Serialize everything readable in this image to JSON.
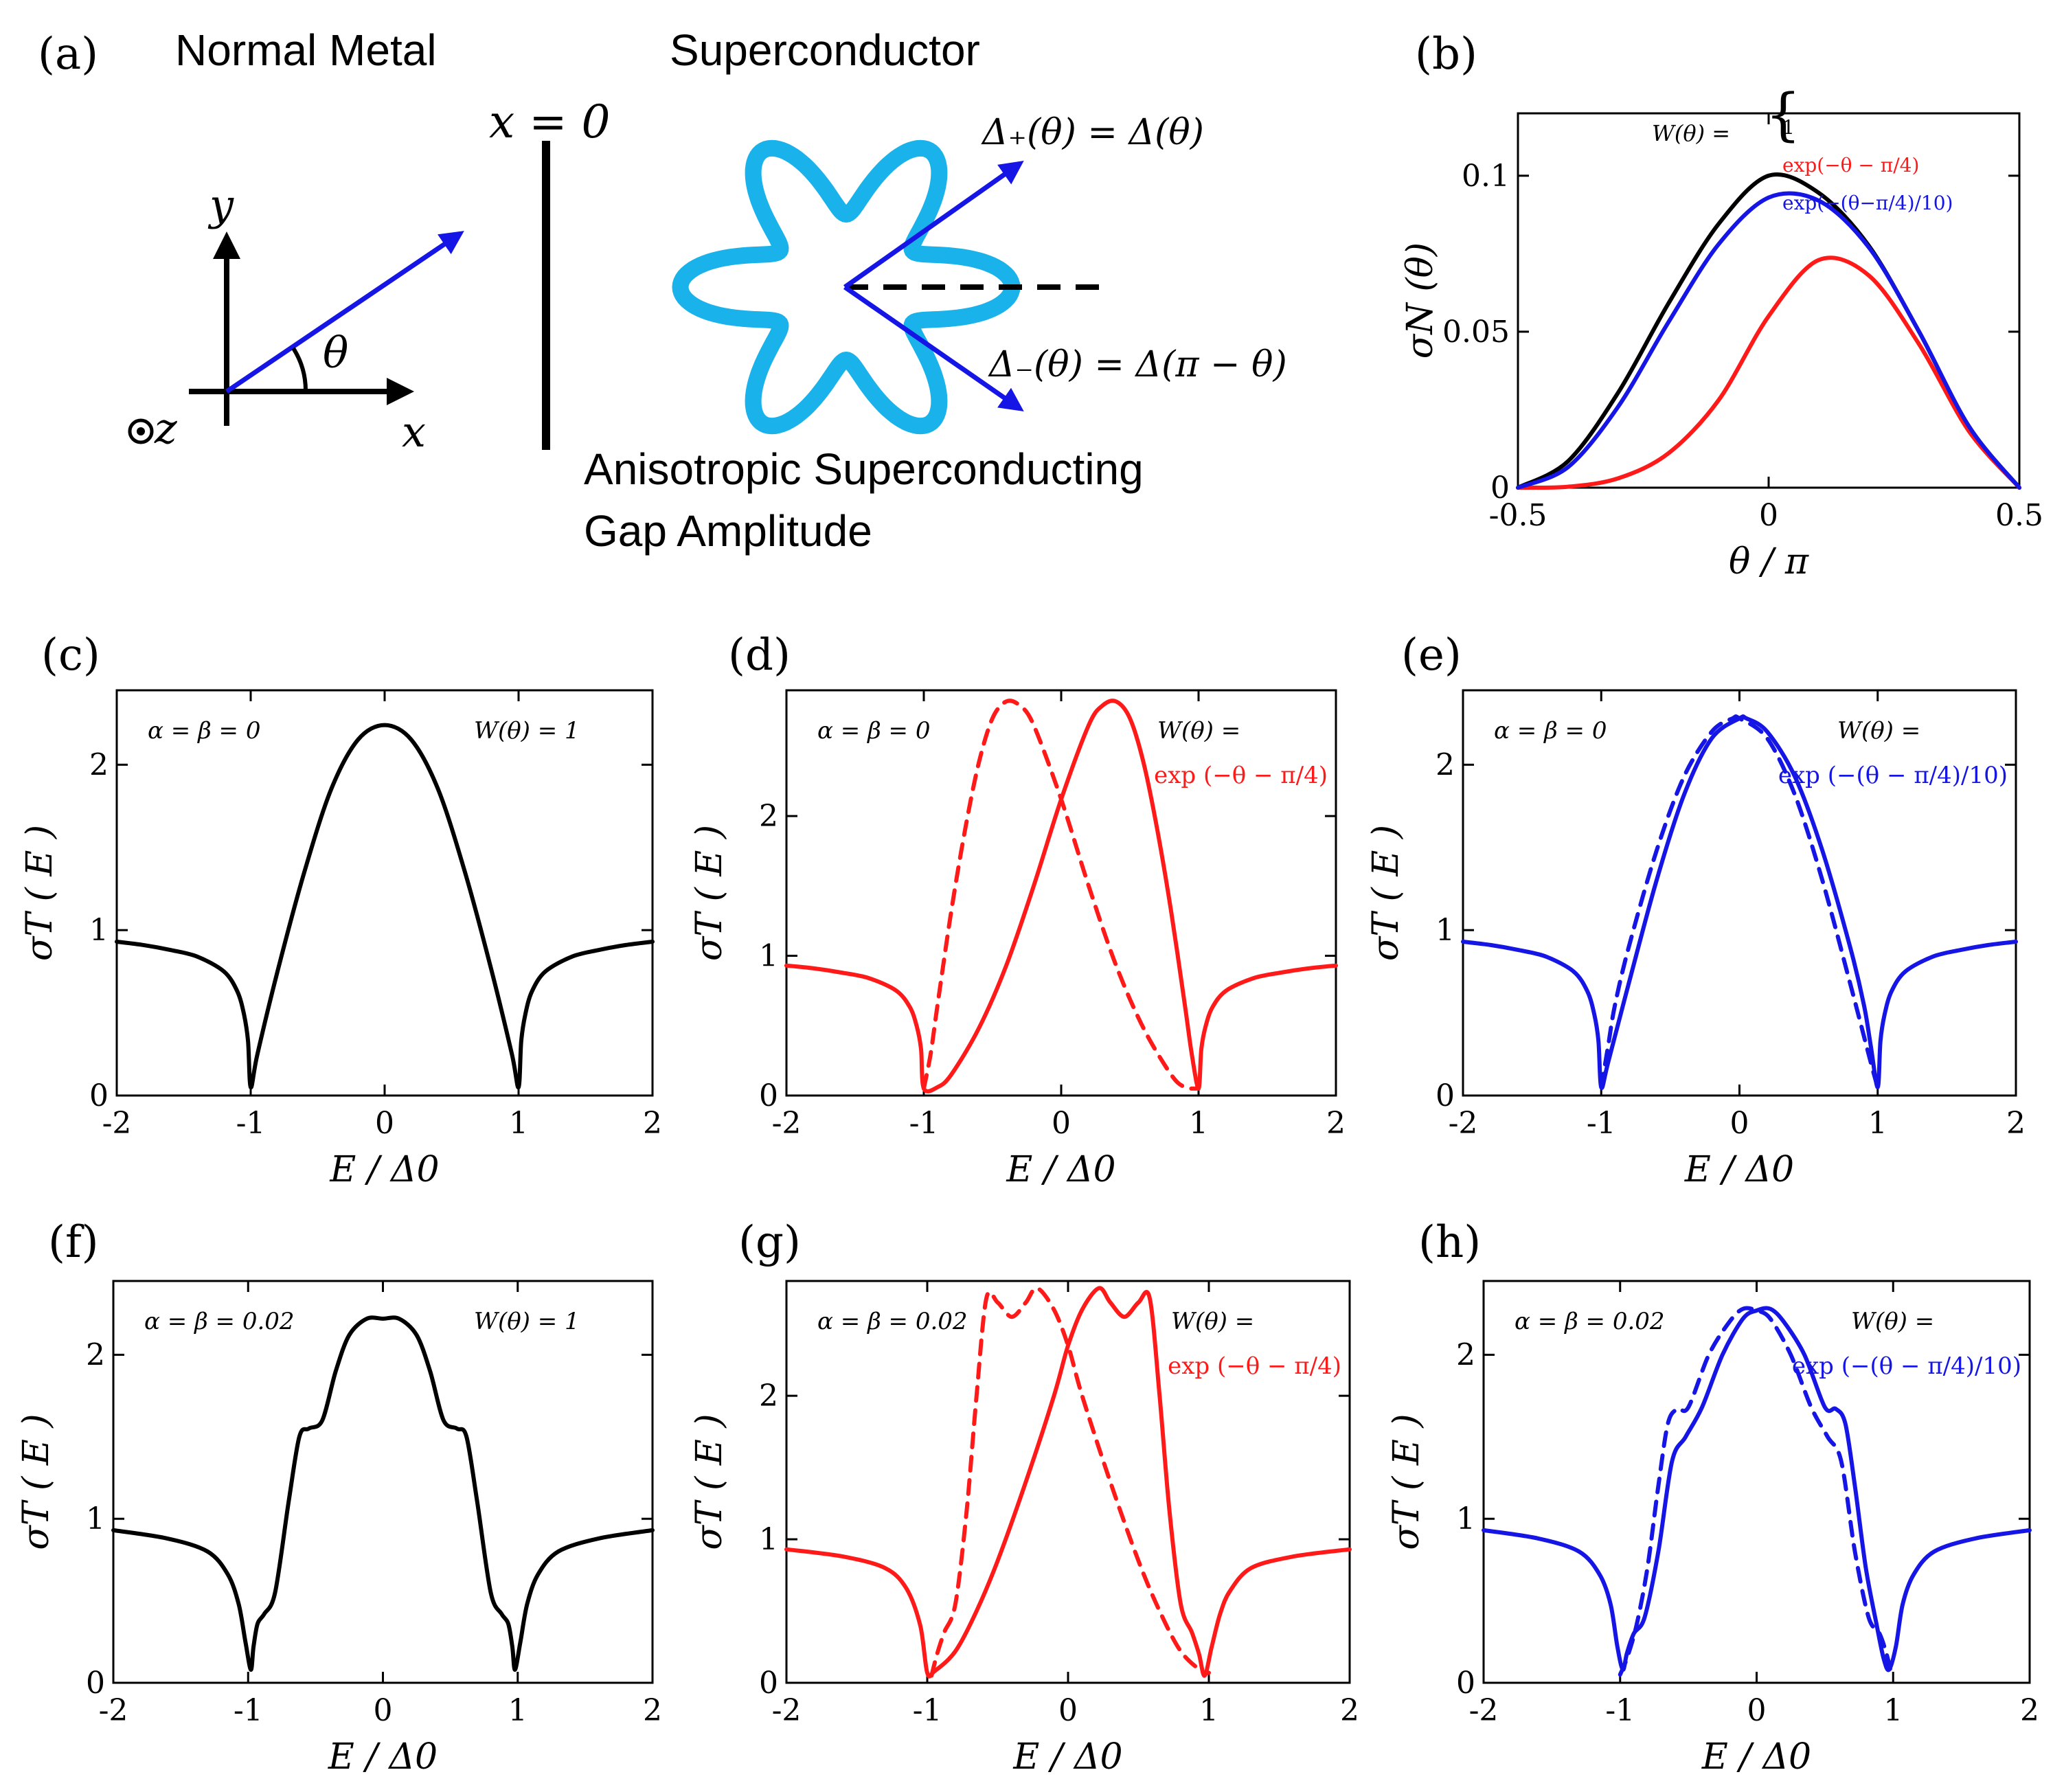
{
  "colors": {
    "black": "#000000",
    "red": "#ff1a1a",
    "blue": "#1515e6",
    "cyan": "#1ab2ea"
  },
  "panel_a": {
    "tag": "(a)",
    "normal_metal": "Normal Metal",
    "superconductor": "Superconductor",
    "x0": "x = 0",
    "axis_y": "y",
    "axis_x": "x",
    "axis_z": "z",
    "theta": "θ",
    "delta_plus": "Δ₊(θ) = Δ(θ)",
    "delta_minus": "Δ₋(θ) = Δ(π − θ)",
    "gap_line1": "Anisotropic Superconducting",
    "gap_line2": "Gap Amplitude"
  },
  "chart_data": [
    {
      "id": "b",
      "tag": "(b)",
      "type": "line",
      "xlabel": "θ / π",
      "ylabel": "σN (θ)",
      "xlim": [
        -0.5,
        0.5
      ],
      "ylim": [
        0,
        0.12
      ],
      "xticks": [
        "-0.5",
        "0",
        "0.5"
      ],
      "yticks": [
        "0",
        "0.05",
        "0.1"
      ],
      "legend_title": "W(θ) =",
      "series": [
        {
          "name": "1",
          "color": "black",
          "dashed": false,
          "x": [
            -0.5,
            -0.4,
            -0.3,
            -0.2,
            -0.1,
            0,
            0.1,
            0.2,
            0.3,
            0.4,
            0.5
          ],
          "y": [
            0,
            0.0085,
            0.0305,
            0.059,
            0.0845,
            0.1,
            0.0945,
            0.0775,
            0.05,
            0.0195,
            0
          ]
        },
        {
          "name": "exp(−θ − π/4)",
          "color": "red",
          "dashed": false,
          "x": [
            -0.5,
            -0.4,
            -0.3,
            -0.2,
            -0.1,
            0,
            0.1,
            0.2,
            0.3,
            0.4,
            0.5
          ],
          "y": [
            0,
            0.0003,
            0.003,
            0.011,
            0.028,
            0.055,
            0.073,
            0.068,
            0.046,
            0.018,
            0
          ]
        },
        {
          "name": "exp(−(θ−π/4)/10)",
          "color": "blue",
          "dashed": false,
          "x": [
            -0.5,
            -0.4,
            -0.3,
            -0.2,
            -0.1,
            0,
            0.1,
            0.2,
            0.3,
            0.4,
            0.5
          ],
          "y": [
            0,
            0.0066,
            0.026,
            0.053,
            0.078,
            0.093,
            0.092,
            0.077,
            0.05,
            0.0195,
            0
          ]
        }
      ]
    },
    {
      "id": "c",
      "tag": "(c)",
      "type": "line",
      "xlabel": "E / Δ0",
      "ylabel": "σT ( E )",
      "xlim": [
        -2,
        2
      ],
      "ylim": [
        0,
        2.45
      ],
      "xticks": [
        "-2",
        "-1",
        "0",
        "1",
        "2"
      ],
      "yticks": [
        "0",
        "1",
        "2"
      ],
      "param": "α = β = 0",
      "wtitle": "W(θ) = 1",
      "wexpr": "",
      "series": [
        {
          "name": "W(θ)=1",
          "color": "black",
          "dashed": false,
          "x": [
            -2,
            -1.8,
            -1.6,
            -1.4,
            -1.2,
            -1.1,
            -1.05,
            -1.02,
            -1,
            -0.95,
            -0.8,
            -0.6,
            -0.4,
            -0.2,
            0,
            0.2,
            0.4,
            0.6,
            0.8,
            0.95,
            1,
            1.02,
            1.05,
            1.1,
            1.2,
            1.4,
            1.6,
            1.8,
            2
          ],
          "y": [
            0.93,
            0.91,
            0.88,
            0.84,
            0.75,
            0.63,
            0.49,
            0.33,
            0.05,
            0.25,
            0.75,
            1.35,
            1.85,
            2.15,
            2.24,
            2.15,
            1.85,
            1.35,
            0.75,
            0.25,
            0.05,
            0.33,
            0.49,
            0.63,
            0.75,
            0.84,
            0.88,
            0.91,
            0.93
          ]
        }
      ]
    },
    {
      "id": "d",
      "tag": "(d)",
      "type": "line",
      "xlabel": "E / Δ0",
      "ylabel": "σT ( E )",
      "xlim": [
        -2,
        2
      ],
      "ylim": [
        0,
        2.9
      ],
      "xticks": [
        "-2",
        "-1",
        "0",
        "1",
        "2"
      ],
      "yticks": [
        "0",
        "1",
        "2"
      ],
      "param": "α = β = 0",
      "wtitle": "W(θ) =",
      "wexpr": "exp (−θ − π/4)",
      "series": [
        {
          "name": "solid",
          "color": "red",
          "dashed": false,
          "x": [
            -2,
            -1.8,
            -1.6,
            -1.4,
            -1.2,
            -1.1,
            -1.05,
            -1.02,
            -1,
            -0.9,
            -0.8,
            -0.6,
            -0.4,
            -0.2,
            0,
            0.2,
            0.3,
            0.4,
            0.5,
            0.6,
            0.7,
            0.8,
            0.9,
            0.95,
            1,
            1.02,
            1.05,
            1.1,
            1.2,
            1.4,
            1.6,
            1.8,
            2
          ],
          "y": [
            0.93,
            0.91,
            0.88,
            0.84,
            0.75,
            0.63,
            0.49,
            0.33,
            0.05,
            0.06,
            0.15,
            0.48,
            0.93,
            1.5,
            2.12,
            2.65,
            2.79,
            2.82,
            2.7,
            2.38,
            1.9,
            1.32,
            0.65,
            0.3,
            0.05,
            0.33,
            0.49,
            0.63,
            0.75,
            0.84,
            0.88,
            0.91,
            0.93
          ]
        },
        {
          "name": "dashed",
          "color": "red",
          "dashed": true,
          "x": [
            -1,
            -0.95,
            -0.9,
            -0.8,
            -0.7,
            -0.6,
            -0.5,
            -0.4,
            -0.3,
            -0.2,
            0,
            0.2,
            0.4,
            0.6,
            0.8,
            0.9,
            1
          ],
          "y": [
            0.05,
            0.3,
            0.65,
            1.32,
            1.9,
            2.38,
            2.7,
            2.82,
            2.79,
            2.65,
            2.12,
            1.5,
            0.93,
            0.48,
            0.15,
            0.06,
            0.05
          ]
        }
      ]
    },
    {
      "id": "e",
      "tag": "(e)",
      "type": "line",
      "xlabel": "E / Δ0",
      "ylabel": "σT ( E )",
      "xlim": [
        -2,
        2
      ],
      "ylim": [
        0,
        2.45
      ],
      "xticks": [
        "-2",
        "-1",
        "0",
        "1",
        "2"
      ],
      "yticks": [
        "0",
        "1",
        "2"
      ],
      "param": "α = β = 0",
      "wtitle": "W(θ) =",
      "wexpr": "exp (−(θ − π/4)/10)",
      "series": [
        {
          "name": "solid",
          "color": "blue",
          "dashed": false,
          "x": [
            -2,
            -1.8,
            -1.6,
            -1.4,
            -1.2,
            -1.1,
            -1.05,
            -1.02,
            -1,
            -0.95,
            -0.8,
            -0.6,
            -0.4,
            -0.2,
            0,
            0.05,
            0.2,
            0.4,
            0.6,
            0.8,
            0.9,
            0.95,
            1,
            1.02,
            1.05,
            1.1,
            1.2,
            1.4,
            1.6,
            1.8,
            2
          ],
          "y": [
            0.93,
            0.91,
            0.88,
            0.84,
            0.75,
            0.63,
            0.49,
            0.33,
            0.05,
            0.2,
            0.68,
            1.3,
            1.82,
            2.16,
            2.28,
            2.28,
            2.2,
            1.93,
            1.48,
            0.9,
            0.55,
            0.3,
            0.05,
            0.33,
            0.49,
            0.63,
            0.75,
            0.84,
            0.88,
            0.91,
            0.93
          ]
        },
        {
          "name": "dashed",
          "color": "blue",
          "dashed": true,
          "x": [
            -1,
            -0.95,
            -0.9,
            -0.8,
            -0.6,
            -0.4,
            -0.2,
            -0.05,
            0,
            0.2,
            0.4,
            0.6,
            0.8,
            0.95,
            1
          ],
          "y": [
            0.05,
            0.3,
            0.55,
            0.9,
            1.48,
            1.93,
            2.2,
            2.28,
            2.28,
            2.16,
            1.82,
            1.3,
            0.68,
            0.2,
            0.05
          ]
        }
      ]
    },
    {
      "id": "f",
      "tag": "(f)",
      "type": "line",
      "xlabel": "E / Δ0",
      "ylabel": "σT ( E )",
      "xlim": [
        -2,
        2
      ],
      "ylim": [
        0,
        2.45
      ],
      "xticks": [
        "-2",
        "-1",
        "0",
        "1",
        "2"
      ],
      "yticks": [
        "0",
        "1",
        "2"
      ],
      "param": "α = β = 0.02",
      "wtitle": "W(θ) = 1",
      "wexpr": "",
      "series": [
        {
          "name": "W(θ)=1",
          "color": "black",
          "dashed": false,
          "x": [
            -2,
            -1.6,
            -1.3,
            -1.15,
            -1.07,
            -1.02,
            -0.98,
            -0.96,
            -0.93,
            -0.88,
            -0.8,
            -0.7,
            -0.62,
            -0.55,
            -0.45,
            -0.35,
            -0.25,
            -0.12,
            0,
            0.12,
            0.25,
            0.35,
            0.45,
            0.55,
            0.62,
            0.7,
            0.8,
            0.88,
            0.93,
            0.96,
            0.98,
            1.02,
            1.07,
            1.15,
            1.3,
            1.6,
            2
          ],
          "y": [
            0.93,
            0.88,
            0.8,
            0.66,
            0.48,
            0.25,
            0.08,
            0.22,
            0.36,
            0.42,
            0.55,
            1.1,
            1.5,
            1.55,
            1.6,
            1.9,
            2.12,
            2.22,
            2.22,
            2.22,
            2.12,
            1.9,
            1.6,
            1.55,
            1.5,
            1.1,
            0.55,
            0.42,
            0.36,
            0.22,
            0.08,
            0.25,
            0.48,
            0.66,
            0.8,
            0.88,
            0.93
          ]
        }
      ]
    },
    {
      "id": "g",
      "tag": "(g)",
      "type": "line",
      "xlabel": "E / Δ0",
      "ylabel": "σT ( E )",
      "xlim": [
        -2,
        2
      ],
      "ylim": [
        0,
        2.8
      ],
      "xticks": [
        "-2",
        "-1",
        "0",
        "1",
        "2"
      ],
      "yticks": [
        "0",
        "1",
        "2"
      ],
      "param": "α = β = 0.02",
      "wtitle": "W(θ) =",
      "wexpr": "exp (−θ − π/4)",
      "series": [
        {
          "name": "solid",
          "color": "red",
          "dashed": false,
          "x": [
            -2,
            -1.6,
            -1.3,
            -1.15,
            -1.05,
            -1,
            -0.95,
            -0.8,
            -0.65,
            -0.5,
            -0.3,
            -0.1,
            0,
            0.1,
            0.22,
            0.3,
            0.4,
            0.5,
            0.58,
            0.65,
            0.72,
            0.8,
            0.88,
            0.93,
            0.97,
            1.02,
            1.08,
            1.15,
            1.3,
            1.6,
            2
          ],
          "y": [
            0.93,
            0.88,
            0.8,
            0.66,
            0.4,
            0.07,
            0.08,
            0.22,
            0.5,
            0.85,
            1.4,
            2.0,
            2.35,
            2.6,
            2.75,
            2.65,
            2.55,
            2.65,
            2.68,
            2.0,
            1.2,
            0.55,
            0.35,
            0.2,
            0.05,
            0.25,
            0.48,
            0.64,
            0.8,
            0.88,
            0.93
          ]
        },
        {
          "name": "dashed",
          "color": "red",
          "dashed": true,
          "x": [
            -0.97,
            -0.93,
            -0.88,
            -0.8,
            -0.72,
            -0.65,
            -0.58,
            -0.5,
            -0.4,
            -0.3,
            -0.22,
            -0.1,
            0,
            0.1,
            0.3,
            0.5,
            0.65,
            0.8,
            0.95,
            1
          ],
          "y": [
            0.05,
            0.2,
            0.35,
            0.55,
            1.2,
            2.0,
            2.68,
            2.65,
            2.55,
            2.65,
            2.75,
            2.6,
            2.35,
            2.0,
            1.4,
            0.85,
            0.5,
            0.22,
            0.08,
            0.07
          ]
        }
      ]
    },
    {
      "id": "h",
      "tag": "(h)",
      "type": "line",
      "xlabel": "E / Δ0",
      "ylabel": "σT ( E )",
      "xlim": [
        -2,
        2
      ],
      "ylim": [
        0,
        2.45
      ],
      "xticks": [
        "-2",
        "-1",
        "0",
        "1",
        "2"
      ],
      "yticks": [
        "0",
        "1",
        "2"
      ],
      "param": "α = β = 0.02",
      "wtitle": "W(θ) =",
      "wexpr": "exp (−(θ − π/4)/10)",
      "series": [
        {
          "name": "solid",
          "color": "blue",
          "dashed": false,
          "x": [
            -2,
            -1.6,
            -1.3,
            -1.15,
            -1.07,
            -1.02,
            -0.98,
            -0.95,
            -0.9,
            -0.82,
            -0.72,
            -0.62,
            -0.52,
            -0.4,
            -0.25,
            -0.1,
            0,
            0.1,
            0.2,
            0.35,
            0.5,
            0.58,
            0.65,
            0.72,
            0.8,
            0.88,
            0.93,
            0.97,
            1.02,
            1.07,
            1.15,
            1.3,
            1.6,
            2
          ],
          "y": [
            0.93,
            0.88,
            0.8,
            0.66,
            0.48,
            0.22,
            0.08,
            0.18,
            0.3,
            0.4,
            0.8,
            1.35,
            1.5,
            1.68,
            2.0,
            2.22,
            2.27,
            2.28,
            2.2,
            2.0,
            1.68,
            1.67,
            1.58,
            1.2,
            0.7,
            0.35,
            0.15,
            0.08,
            0.22,
            0.48,
            0.66,
            0.8,
            0.88,
            0.93
          ]
        },
        {
          "name": "dashed",
          "color": "blue",
          "dashed": true,
          "x": [
            -1,
            -0.95,
            -0.88,
            -0.8,
            -0.72,
            -0.65,
            -0.58,
            -0.5,
            -0.35,
            -0.2,
            -0.1,
            0,
            0.1,
            0.25,
            0.4,
            0.52,
            0.62,
            0.72,
            0.82,
            0.9,
            0.95,
            0.98
          ],
          "y": [
            0.05,
            0.15,
            0.35,
            0.7,
            1.2,
            1.58,
            1.67,
            1.68,
            2.0,
            2.2,
            2.28,
            2.27,
            2.22,
            2.0,
            1.68,
            1.5,
            1.35,
            0.8,
            0.4,
            0.3,
            0.18,
            0.08
          ]
        }
      ]
    }
  ]
}
